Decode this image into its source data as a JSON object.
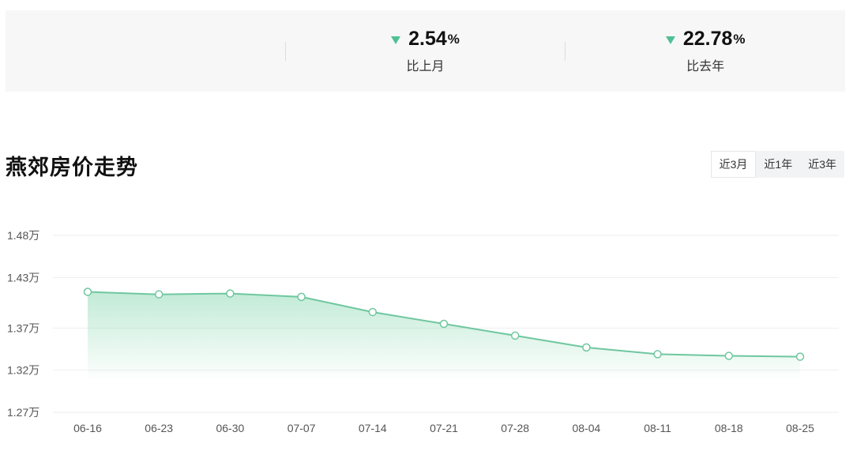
{
  "stats": [
    {
      "value": "2.54",
      "unit": "%",
      "label": "比上月",
      "direction": "down",
      "color": "#4fc093"
    },
    {
      "value": "22.78",
      "unit": "%",
      "label": "比去年",
      "direction": "down",
      "color": "#4fc093"
    }
  ],
  "chart_section": {
    "title": "燕郊房价走势",
    "tabs": [
      "近3月",
      "近1年",
      "近3年"
    ],
    "active_tab": "近3月"
  },
  "chart_data": {
    "type": "area",
    "title": "燕郊房价走势",
    "x": [
      "06-16",
      "06-23",
      "06-30",
      "07-07",
      "07-14",
      "07-21",
      "07-28",
      "08-04",
      "08-11",
      "08-18",
      "08-25"
    ],
    "series": [
      {
        "values": [
          1.413,
          1.41,
          1.411,
          1.407,
          1.389,
          1.375,
          1.361,
          1.347,
          1.339,
          1.337,
          1.336
        ]
      }
    ],
    "y_ticks": [
      "1.48万",
      "1.43万",
      "1.37万",
      "1.32万",
      "1.27万"
    ],
    "y_tick_values": [
      1.48,
      1.43,
      1.37,
      1.32,
      1.27
    ],
    "ylim": [
      1.27,
      1.48
    ],
    "grid": true,
    "colors": {
      "line": "#6fc79f",
      "area": "#8fdab5",
      "marker_fill": "#ffffff"
    }
  }
}
